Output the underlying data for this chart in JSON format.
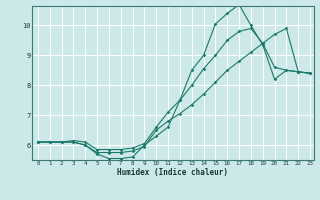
{
  "title": "",
  "xlabel": "Humidex (Indice chaleur)",
  "ylabel": "",
  "bg_color": "#cce8e8",
  "grid_color": "#ffffff",
  "line_color": "#1a7a6a",
  "xlim": [
    -0.5,
    23.3
  ],
  "ylim": [
    5.5,
    10.65
  ],
  "yticks": [
    6,
    7,
    8,
    9,
    10
  ],
  "xticks": [
    0,
    1,
    2,
    3,
    4,
    5,
    6,
    7,
    8,
    9,
    10,
    11,
    12,
    13,
    14,
    15,
    16,
    17,
    18,
    19,
    20,
    21,
    22,
    23
  ],
  "line1_x": [
    0,
    1,
    2,
    3,
    4,
    5,
    6,
    7,
    8,
    9,
    10,
    11,
    12,
    13,
    14,
    15,
    16,
    17,
    18,
    19,
    20,
    21,
    22,
    23
  ],
  "line1_y": [
    6.1,
    6.1,
    6.1,
    6.1,
    6.0,
    5.7,
    5.55,
    5.55,
    5.6,
    6.0,
    6.3,
    6.6,
    7.5,
    8.5,
    9.0,
    10.05,
    10.4,
    10.7,
    10.0,
    9.35,
    8.2,
    8.5,
    8.45,
    8.4
  ],
  "line2_x": [
    0,
    1,
    2,
    3,
    4,
    5,
    6,
    7,
    8,
    9,
    10,
    11,
    12,
    13,
    14,
    15,
    16,
    17,
    18,
    19,
    20,
    21,
    22,
    23
  ],
  "line2_y": [
    6.1,
    6.1,
    6.1,
    6.15,
    6.1,
    5.85,
    5.85,
    5.85,
    5.9,
    6.05,
    6.6,
    7.1,
    7.5,
    8.0,
    8.55,
    9.0,
    9.5,
    9.8,
    9.9,
    9.4,
    8.6,
    8.5,
    8.45,
    8.4
  ],
  "line3_x": [
    0,
    1,
    2,
    3,
    4,
    5,
    6,
    7,
    8,
    9,
    10,
    11,
    12,
    13,
    14,
    15,
    16,
    17,
    18,
    19,
    20,
    21,
    22,
    23
  ],
  "line3_y": [
    6.1,
    6.1,
    6.1,
    6.1,
    6.0,
    5.75,
    5.75,
    5.75,
    5.8,
    5.95,
    6.5,
    6.8,
    7.05,
    7.35,
    7.7,
    8.1,
    8.5,
    8.8,
    9.1,
    9.4,
    9.7,
    9.9,
    8.45,
    8.4
  ]
}
